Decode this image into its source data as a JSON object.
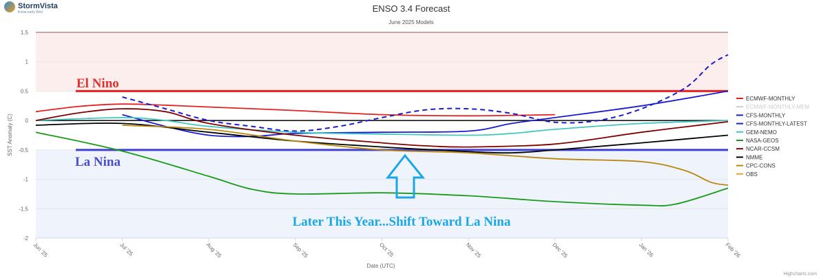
{
  "brand": {
    "name": "StormVista",
    "tagline": "Know early Win!"
  },
  "chart_data": {
    "type": "line",
    "title": "ENSO 3.4 Forecast",
    "subtitle": "June 2025 Models",
    "xlabel": "Date (UTC)",
    "ylabel": "SST Anomaly (C)",
    "x_ticks": [
      "Jun '25",
      "Jul '25",
      "Aug '25",
      "Sep '25",
      "Oct '25",
      "Nov '25",
      "Dec '25",
      "Jan '26",
      "Feb '26"
    ],
    "xlim": [
      0,
      8
    ],
    "ylim": [
      -2,
      1.5
    ],
    "y_ticks": [
      1.5,
      1,
      0.5,
      0,
      -0.5,
      -1,
      -1.5,
      -2
    ],
    "y_tick_labels": [
      "1.5",
      "1",
      "0.5",
      "0",
      "-0.5",
      "-1",
      "-1.5",
      "-2"
    ],
    "grid": true,
    "legend_position": "right",
    "plot_bands": [
      {
        "from": 0.5,
        "to": 1.5,
        "color": "#fdeeee"
      },
      {
        "from": -2,
        "to": -0.5,
        "color": "#eef3fc"
      }
    ],
    "plot_lines": [
      {
        "value": 1.5,
        "color": "#8a5a5a",
        "width": 1
      },
      {
        "value": 0.5,
        "color": "#e62020",
        "width": 3
      },
      {
        "value": 0,
        "color": "#000000",
        "width": 1.5
      },
      {
        "value": -0.5,
        "color": "#4040d0",
        "width": 3
      }
    ],
    "series": [
      {
        "name": "ECMWF-MONTHLY",
        "color": "#e62020",
        "dash": false,
        "visible": true,
        "points": [
          [
            0,
            0.15
          ],
          [
            0.5,
            0.24
          ],
          [
            1,
            0.28
          ],
          [
            1.5,
            0.26
          ],
          [
            2,
            0.23
          ],
          [
            3,
            0.17
          ],
          [
            4,
            0.1
          ],
          [
            5,
            0.08
          ],
          [
            6,
            0.1
          ]
        ]
      },
      {
        "name": "ECMWF-MONTHLY-MEM",
        "color": "#cccccc",
        "dash": false,
        "visible": false,
        "points": []
      },
      {
        "name": "CFS-MONTHLY",
        "color": "#1a1ad0",
        "dash": false,
        "visible": true,
        "points": [
          [
            1,
            0.1
          ],
          [
            1.5,
            -0.1
          ],
          [
            2,
            -0.25
          ],
          [
            2.5,
            -0.27
          ],
          [
            3,
            -0.22
          ],
          [
            4,
            -0.2
          ],
          [
            5,
            -0.18
          ],
          [
            5.5,
            -0.05
          ],
          [
            6,
            0.05
          ],
          [
            7,
            0.25
          ],
          [
            8,
            0.5
          ]
        ]
      },
      {
        "name": "CFS-MONTHLY-LATEST",
        "color": "#1a1ad0",
        "dash": true,
        "visible": true,
        "points": [
          [
            1,
            0.4
          ],
          [
            1.5,
            0.2
          ],
          [
            2,
            0
          ],
          [
            2.5,
            -0.1
          ],
          [
            3,
            -0.18
          ],
          [
            3.5,
            -0.1
          ],
          [
            4,
            0.05
          ],
          [
            4.5,
            0.18
          ],
          [
            5,
            0.2
          ],
          [
            5.5,
            0.12
          ],
          [
            6,
            -0.03
          ],
          [
            6.5,
            0
          ],
          [
            7,
            0.2
          ],
          [
            7.5,
            0.55
          ],
          [
            7.8,
            0.95
          ],
          [
            8,
            1.12
          ]
        ]
      },
      {
        "name": "GEM-NEMO",
        "color": "#40c8c0",
        "dash": false,
        "visible": true,
        "points": [
          [
            0,
            0
          ],
          [
            1,
            0.05
          ],
          [
            1.5,
            0
          ],
          [
            2,
            -0.1
          ],
          [
            3,
            -0.2
          ],
          [
            4,
            -0.23
          ],
          [
            5,
            -0.25
          ],
          [
            5.5,
            -0.22
          ],
          [
            6,
            -0.15
          ],
          [
            7,
            -0.05
          ],
          [
            8,
            0
          ]
        ]
      },
      {
        "name": "NASA-GEOS",
        "color": "#1a9a1a",
        "dash": false,
        "visible": true,
        "points": [
          [
            0,
            -0.2
          ],
          [
            1,
            -0.52
          ],
          [
            2,
            -0.95
          ],
          [
            2.5,
            -1.17
          ],
          [
            3,
            -1.25
          ],
          [
            4,
            -1.23
          ],
          [
            5,
            -1.28
          ],
          [
            6,
            -1.38
          ],
          [
            7,
            -1.44
          ],
          [
            7.4,
            -1.42
          ],
          [
            8,
            -1.15
          ]
        ]
      },
      {
        "name": "NCAR-CCSM",
        "color": "#800000",
        "dash": false,
        "visible": true,
        "points": [
          [
            0,
            0
          ],
          [
            0.5,
            0.13
          ],
          [
            1,
            0.2
          ],
          [
            1.5,
            0.15
          ],
          [
            2,
            -0.05
          ],
          [
            3,
            -0.25
          ],
          [
            4,
            -0.38
          ],
          [
            4.5,
            -0.43
          ],
          [
            5,
            -0.45
          ],
          [
            6,
            -0.4
          ],
          [
            7,
            -0.2
          ],
          [
            8,
            -0.02
          ]
        ]
      },
      {
        "name": "NMME",
        "color": "#000000",
        "dash": false,
        "visible": true,
        "points": [
          [
            0,
            -0.08
          ],
          [
            1,
            -0.05
          ],
          [
            2,
            -0.2
          ],
          [
            3,
            -0.35
          ],
          [
            4,
            -0.45
          ],
          [
            5,
            -0.53
          ],
          [
            5.5,
            -0.55
          ],
          [
            6,
            -0.5
          ],
          [
            7,
            -0.38
          ],
          [
            8,
            -0.25
          ]
        ]
      },
      {
        "name": "CPC-CONS",
        "color": "#b8860b",
        "dash": false,
        "visible": true,
        "points": [
          [
            1,
            -0.08
          ],
          [
            2,
            -0.15
          ],
          [
            3,
            -0.35
          ],
          [
            4,
            -0.5
          ],
          [
            5,
            -0.55
          ],
          [
            6,
            -0.65
          ],
          [
            7,
            -0.7
          ],
          [
            7.5,
            -0.85
          ],
          [
            7.8,
            -1.05
          ],
          [
            8,
            -1.1
          ]
        ]
      },
      {
        "name": "OBS",
        "color": "#f0a030",
        "dash": false,
        "visible": true,
        "points": []
      }
    ],
    "annotations": {
      "el_nino": "El Nino",
      "la_nina": "La Nina",
      "later": "Later This Year...Shift Toward La Nina"
    },
    "credits": "Highcharts.com"
  }
}
